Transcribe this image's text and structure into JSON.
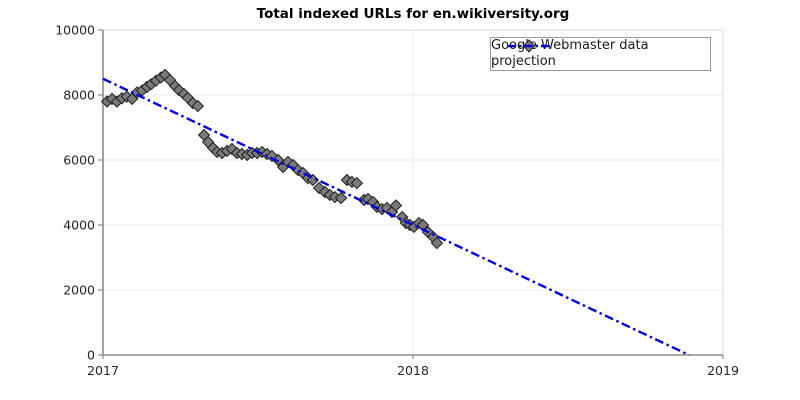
{
  "chart_data": {
    "type": "scatter",
    "title": "Total indexed URLs for en.wikiversity.org",
    "xlabel": "",
    "ylabel": "",
    "xlim": [
      2017,
      2019
    ],
    "ylim": [
      0,
      10000
    ],
    "xticks": [
      2017,
      2018,
      2019
    ],
    "yticks": [
      0,
      2000,
      4000,
      6000,
      8000,
      10000
    ],
    "grid": true,
    "legend_position": "upper-right-inside",
    "series": [
      {
        "name": "Google Webmaster data",
        "kind": "scatter",
        "marker": "diamond",
        "marker_fill": "#7a7a7a",
        "marker_edge": "#1f1f1f",
        "points": [
          [
            2017.013,
            7800
          ],
          [
            2017.029,
            7880
          ],
          [
            2017.045,
            7800
          ],
          [
            2017.061,
            7900
          ],
          [
            2017.077,
            7950
          ],
          [
            2017.094,
            7880
          ],
          [
            2017.11,
            8080
          ],
          [
            2017.126,
            8140
          ],
          [
            2017.142,
            8250
          ],
          [
            2017.155,
            8330
          ],
          [
            2017.171,
            8440
          ],
          [
            2017.187,
            8540
          ],
          [
            2017.2,
            8620
          ],
          [
            2017.216,
            8460
          ],
          [
            2017.232,
            8280
          ],
          [
            2017.245,
            8150
          ],
          [
            2017.261,
            8030
          ],
          [
            2017.274,
            7910
          ],
          [
            2017.29,
            7750
          ],
          [
            2017.306,
            7660
          ],
          [
            2017.326,
            6770
          ],
          [
            2017.339,
            6550
          ],
          [
            2017.355,
            6370
          ],
          [
            2017.368,
            6250
          ],
          [
            2017.384,
            6215
          ],
          [
            2017.4,
            6280
          ],
          [
            2017.416,
            6340
          ],
          [
            2017.432,
            6215
          ],
          [
            2017.448,
            6185
          ],
          [
            2017.465,
            6155
          ],
          [
            2017.481,
            6215
          ],
          [
            2017.497,
            6215
          ],
          [
            2017.513,
            6245
          ],
          [
            2017.529,
            6185
          ],
          [
            2017.545,
            6125
          ],
          [
            2017.565,
            6000
          ],
          [
            2017.581,
            5785
          ],
          [
            2017.597,
            5940
          ],
          [
            2017.613,
            5845
          ],
          [
            2017.629,
            5690
          ],
          [
            2017.645,
            5600
          ],
          [
            2017.661,
            5445
          ],
          [
            2017.677,
            5385
          ],
          [
            2017.697,
            5140
          ],
          [
            2017.716,
            5015
          ],
          [
            2017.732,
            4925
          ],
          [
            2017.748,
            4860
          ],
          [
            2017.768,
            4830
          ],
          [
            2017.787,
            5385
          ],
          [
            2017.803,
            5325
          ],
          [
            2017.819,
            5290
          ],
          [
            2017.842,
            4770
          ],
          [
            2017.855,
            4800
          ],
          [
            2017.871,
            4710
          ],
          [
            2017.884,
            4555
          ],
          [
            2017.9,
            4490
          ],
          [
            2017.916,
            4525
          ],
          [
            2017.932,
            4400
          ],
          [
            2017.945,
            4600
          ],
          [
            2017.965,
            4245
          ],
          [
            2017.977,
            4060
          ],
          [
            2017.99,
            4000
          ],
          [
            2018.003,
            3940
          ],
          [
            2018.019,
            4060
          ],
          [
            2018.032,
            4000
          ],
          [
            2018.048,
            3785
          ],
          [
            2018.065,
            3630
          ],
          [
            2018.077,
            3445
          ]
        ]
      },
      {
        "name": "projection",
        "kind": "line",
        "line_style": "dash-dot",
        "color": "#0000dd",
        "points": [
          [
            2017.0,
            8500
          ],
          [
            2018.89,
            0
          ]
        ]
      }
    ]
  },
  "colors": {
    "grid": "#ebebeb",
    "spine_main": "#8c8c8c",
    "spine_light": "#d9d9d9",
    "tick_label": "#262626",
    "projection_blue": "#0000dd",
    "marker_gray": "#7a7a7a"
  }
}
